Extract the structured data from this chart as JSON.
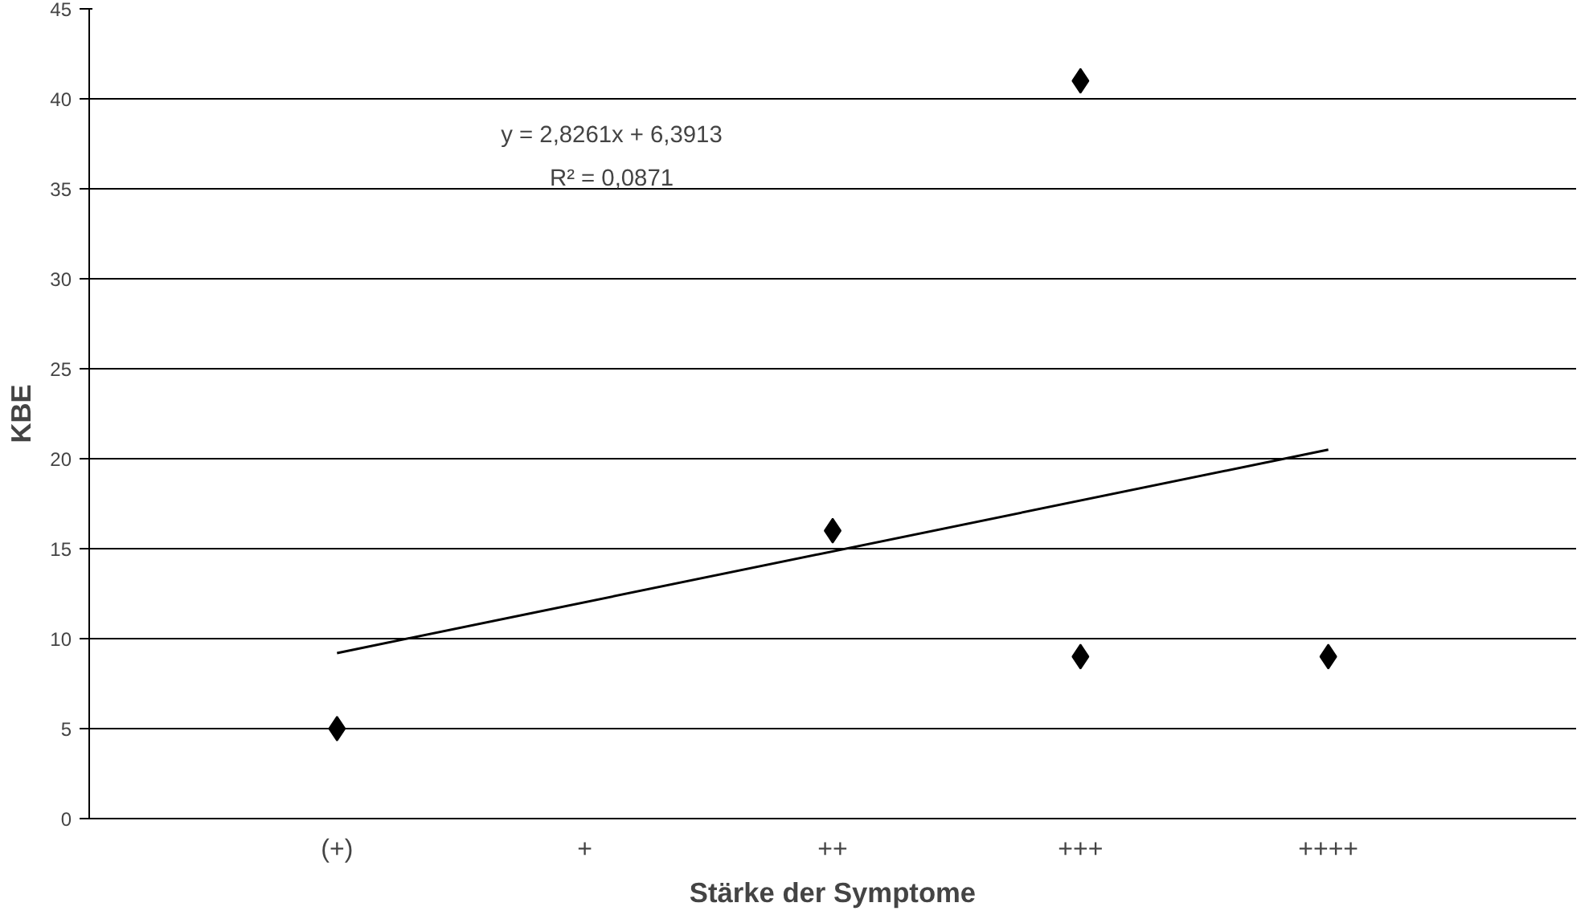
{
  "chart_data": {
    "type": "scatter",
    "xlabel": "Stärke der Symptome",
    "ylabel": "KBE",
    "categories": [
      "(+)",
      "+",
      "++",
      "+++",
      "++++"
    ],
    "series": [
      {
        "color": "#000000",
        "x": [
          "(+)",
          "++",
          "+++",
          "+++",
          "++++"
        ],
        "values": [
          5,
          16,
          41,
          9,
          9
        ],
        "marker": "diamond"
      },
      {
        "type": "line",
        "color": "#000000",
        "x": [
          "(+)",
          "++++"
        ],
        "values": [
          9.2,
          20.5
        ],
        "marker": "none"
      }
    ],
    "annotations": [
      "y = 2,8261x + 6,3913",
      "R² = 0,0871"
    ],
    "ylim": [
      0,
      45
    ],
    "yticks": [
      0,
      5,
      10,
      15,
      20,
      25,
      30,
      35,
      40,
      45
    ],
    "grid": "y"
  }
}
